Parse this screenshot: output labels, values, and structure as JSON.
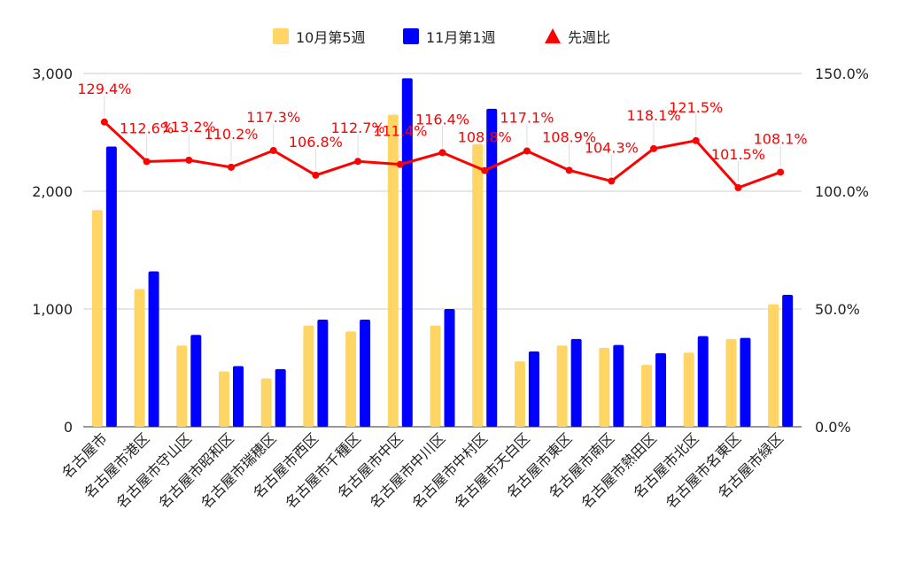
{
  "chart_data": {
    "type": "bar",
    "categories": [
      "名古屋市",
      "名古屋市港区",
      "名古屋市守山区",
      "名古屋市昭和区",
      "名古屋市瑞穂区",
      "名古屋市西区",
      "名古屋市千種区",
      "名古屋市中区",
      "名古屋市中川区",
      "名古屋市中村区",
      "名古屋市天白区",
      "名古屋市東区",
      "名古屋市南区",
      "名古屋市熱田区",
      "名古屋市北区",
      "名古屋市名東区",
      "名古屋市緑区"
    ],
    "series": [
      {
        "name": "10月第5週",
        "type": "bar",
        "axis": "left",
        "color": "#ffd666",
        "values": [
          1840,
          1170,
          690,
          470,
          410,
          860,
          810,
          2650,
          860,
          2400,
          555,
          690,
          670,
          525,
          630,
          745,
          1040
        ]
      },
      {
        "name": "11月第1週",
        "type": "bar",
        "axis": "left",
        "color": "#0000ff",
        "values": [
          2380,
          1320,
          780,
          515,
          490,
          910,
          910,
          2960,
          1000,
          2700,
          640,
          745,
          695,
          625,
          770,
          755,
          1120
        ]
      },
      {
        "name": "先週比",
        "type": "line",
        "axis": "right",
        "color": "#ff0000",
        "values": [
          129.4,
          112.6,
          113.2,
          110.2,
          117.3,
          106.8,
          112.7,
          111.4,
          116.4,
          108.8,
          117.1,
          108.9,
          104.3,
          118.1,
          121.5,
          101.5,
          108.1
        ],
        "labels": [
          "129.4%",
          "112.6%",
          "113.2%",
          "110.2%",
          "117.3%",
          "106.8%",
          "112.7%",
          "111.4%",
          "116.4%",
          "108.8%",
          "117.1%",
          "108.9%",
          "104.3%",
          "118.1%",
          "121.5%",
          "101.5%",
          "108.1%"
        ]
      }
    ],
    "left_axis": {
      "min": 0,
      "max": 3000,
      "ticks": [
        "0",
        "1,000",
        "2,000",
        "3,000"
      ],
      "values": [
        0,
        1000,
        2000,
        3000
      ]
    },
    "right_axis": {
      "min": 0,
      "max": 150,
      "ticks": [
        "0.0%",
        "50.0%",
        "100.0%",
        "150.0%"
      ],
      "values": [
        0,
        50,
        100,
        150
      ]
    },
    "legend_position": "top",
    "grid": true,
    "title": "",
    "xlabel": "",
    "ylabel": ""
  },
  "colors": {
    "grid": "#cccccc",
    "axis_text": "#222222",
    "label": "#ff0000"
  }
}
